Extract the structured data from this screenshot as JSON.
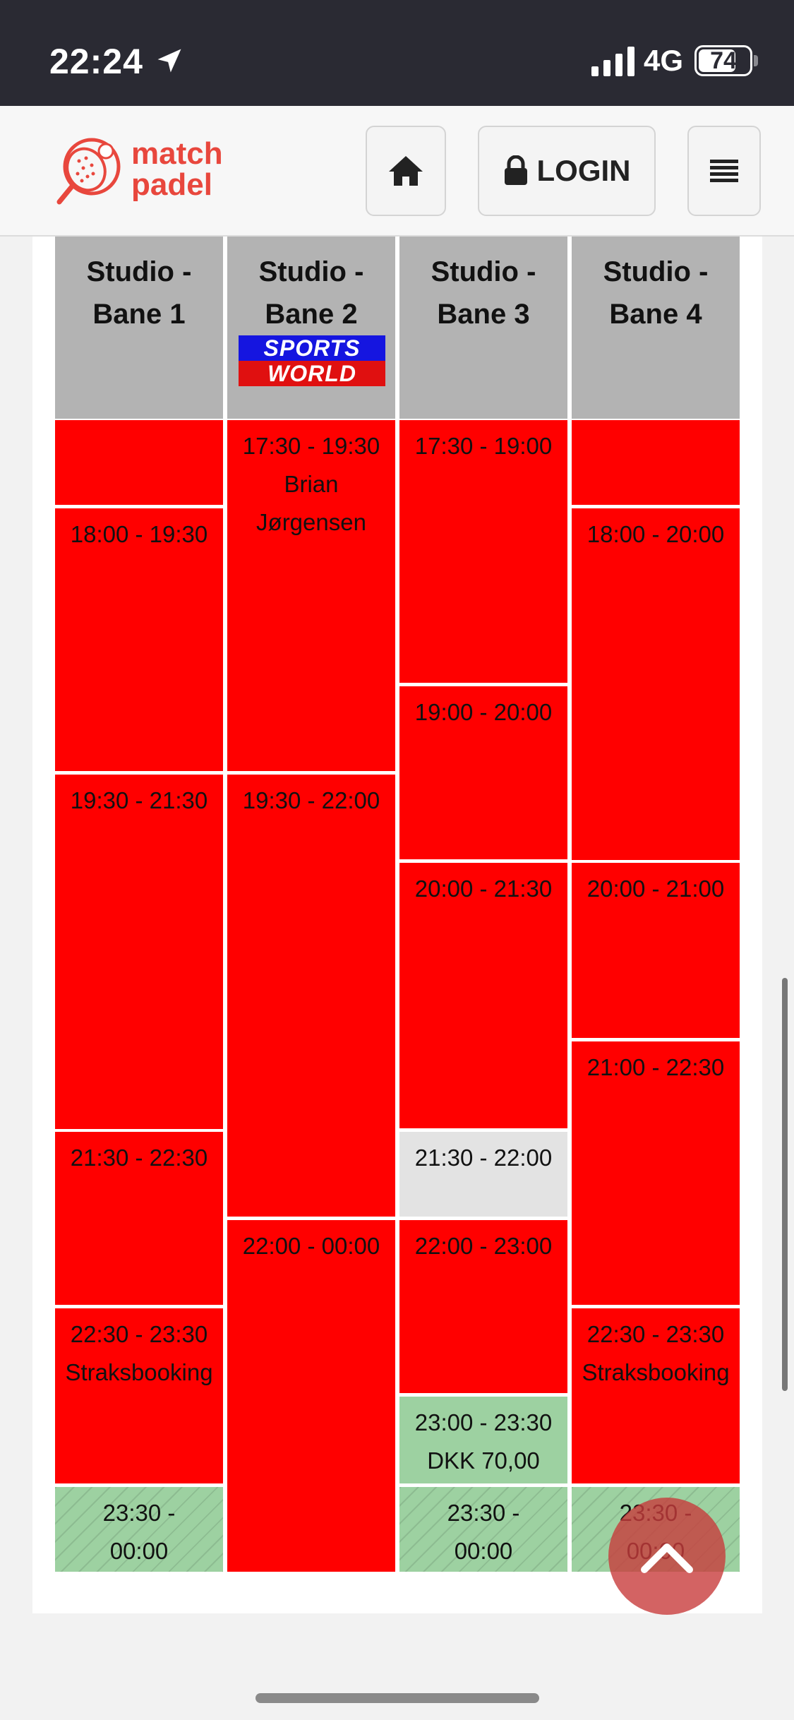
{
  "status_bar": {
    "time": "22:24",
    "network": "4G",
    "battery": "74",
    "battery_level": 0.74
  },
  "header": {
    "logo_line1": "match",
    "logo_line2": "padel",
    "login_label": "LOGIN"
  },
  "columns": [
    {
      "line1": "Studio -",
      "line2": "Bane 1"
    },
    {
      "line1": "Studio -",
      "line2": "Bane 2",
      "sponsor_top": "SPORTS",
      "sponsor_bottom": "WORLD"
    },
    {
      "line1": "Studio -",
      "line2": "Bane 3"
    },
    {
      "line1": "Studio -",
      "line2": "Bane 4"
    }
  ],
  "slots": {
    "c1": [
      {
        "time": "",
        "note": ""
      },
      {
        "time": "18:00 - 19:30",
        "note": ""
      },
      {
        "time": "19:30 - 21:30",
        "note": ""
      },
      {
        "time": "21:30 - 22:30",
        "note": ""
      },
      {
        "time": "22:30 - 23:30",
        "note": "Straksbooking"
      },
      {
        "time": "23:30 -",
        "note": "00:00"
      }
    ],
    "c2": [
      {
        "time": "17:30 - 19:30",
        "note": "Brian",
        "note2": "Jørgensen"
      },
      {
        "time": "19:30 - 22:00",
        "note": ""
      },
      {
        "time": "22:00 - 00:00",
        "note": ""
      }
    ],
    "c3": [
      {
        "time": "17:30 - 19:00",
        "note": ""
      },
      {
        "time": "19:00 - 20:00",
        "note": ""
      },
      {
        "time": "20:00 - 21:30",
        "note": ""
      },
      {
        "time": "21:30 - 22:00",
        "note": ""
      },
      {
        "time": "22:00 - 23:00",
        "note": ""
      },
      {
        "time": "23:00 - 23:30",
        "note": "DKK 70,00"
      },
      {
        "time": "23:30 -",
        "note": "00:00"
      }
    ],
    "c4": [
      {
        "time": "",
        "note": ""
      },
      {
        "time": "18:00 - 20:00",
        "note": ""
      },
      {
        "time": "20:00 - 21:00",
        "note": ""
      },
      {
        "time": "21:00 - 22:30",
        "note": ""
      },
      {
        "time": "22:30 - 23:30",
        "note": "Straksbooking"
      },
      {
        "time": "23:30 -",
        "note": "00:00"
      }
    ]
  },
  "colors": {
    "booked": "#ff0000",
    "available": "#9dd1a1",
    "closed": "#e3e3e3",
    "brand": "#e8473d"
  }
}
